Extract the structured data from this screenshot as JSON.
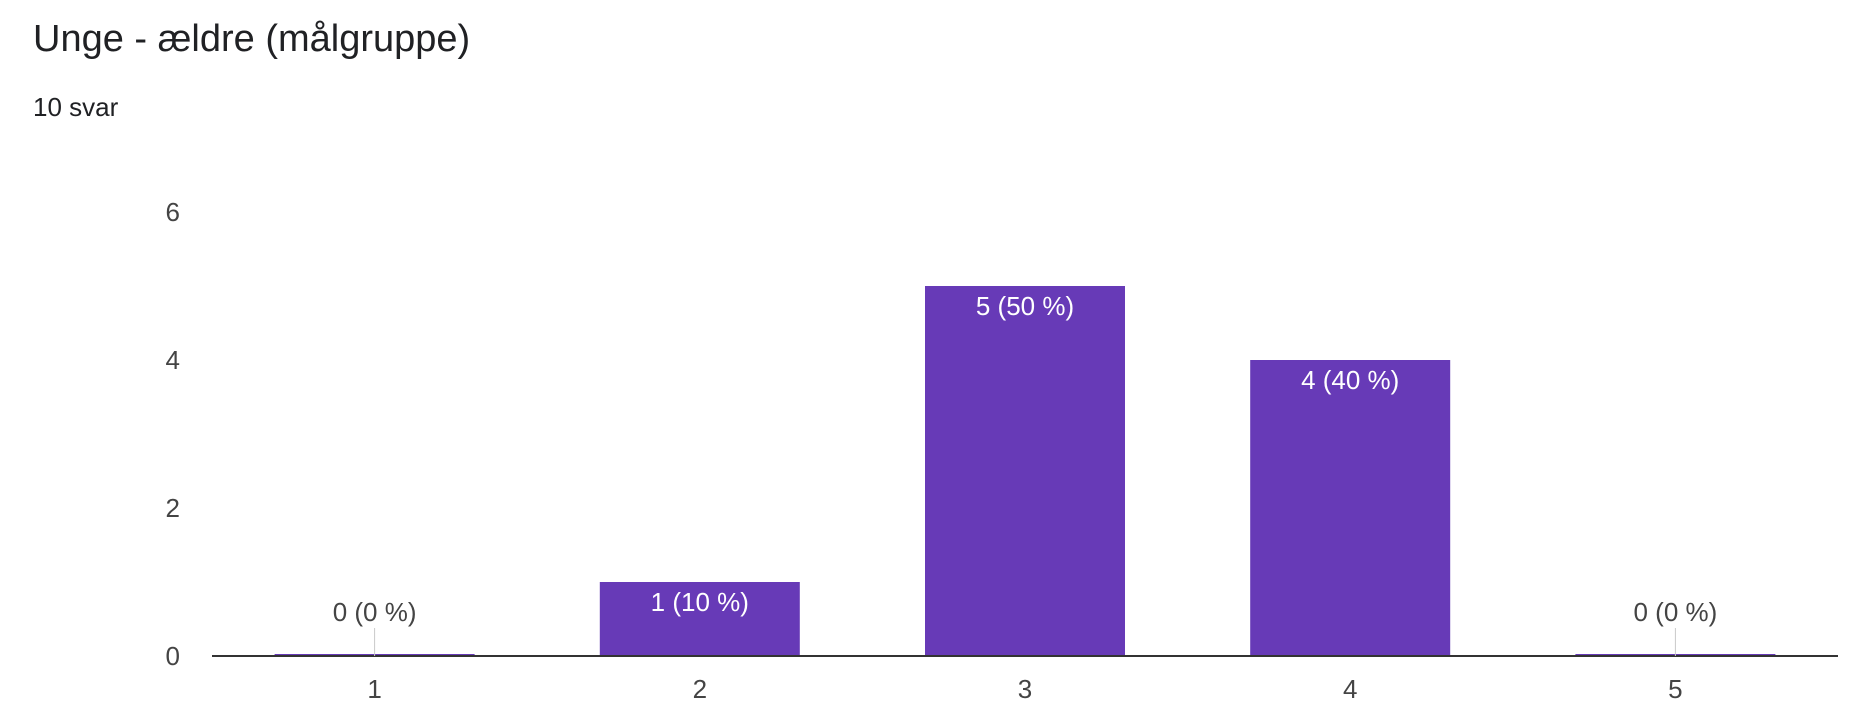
{
  "header": {
    "title": "Unge - ældre (målgruppe)",
    "subtitle": "10 svar"
  },
  "colors": {
    "bar": "#673AB7",
    "label_inside": "#ffffff",
    "label_outside": "#444444",
    "axis": "#333333"
  },
  "chart_data": {
    "type": "bar",
    "categories": [
      "1",
      "2",
      "3",
      "4",
      "5"
    ],
    "values": [
      0,
      1,
      5,
      4,
      0
    ],
    "data_labels": [
      "0 (0 %)",
      "1 (10 %)",
      "5 (50 %)",
      "4 (40 %)",
      "0 (0 %)"
    ],
    "ylim": [
      0,
      6
    ],
    "yticks": [
      0,
      2,
      4,
      6
    ],
    "grid": false,
    "legend": "none"
  }
}
